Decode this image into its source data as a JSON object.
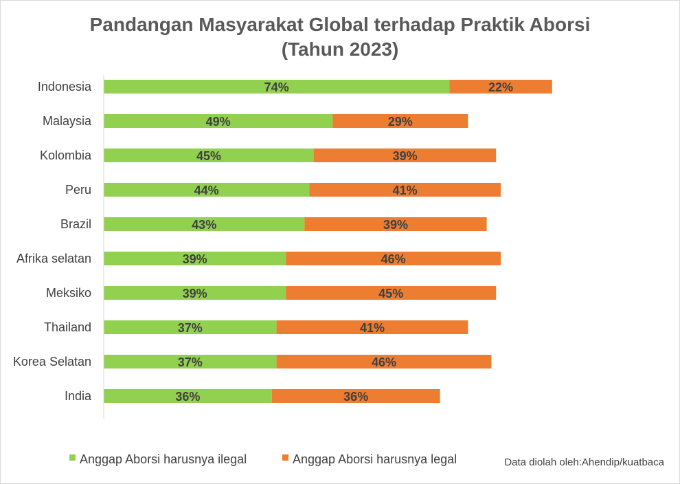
{
  "chart_data": {
    "type": "bar",
    "orientation": "horizontal",
    "stacked": true,
    "title": "Pandangan Masyarakat Global terhadap Praktik Aborsi",
    "subtitle": "(Tahun 2023)",
    "categories": [
      "Indonesia",
      "Malaysia",
      "Kolombia",
      "Peru",
      "Brazil",
      "Afrika selatan",
      "Meksiko",
      "Thailand",
      "Korea Selatan",
      "India"
    ],
    "series": [
      {
        "name": "Anggap Aborsi harusnya ilegal",
        "color": "#92d050",
        "values": [
          74,
          49,
          45,
          44,
          43,
          39,
          39,
          37,
          37,
          36
        ],
        "labels": [
          "74%",
          "49%",
          "45%",
          "44%",
          "43%",
          "39%",
          "39%",
          "37%",
          "37%",
          "36%"
        ]
      },
      {
        "name": "Anggap Aborsi harusnya legal",
        "color": "#ed7d31",
        "values": [
          22,
          29,
          39,
          41,
          39,
          46,
          45,
          41,
          46,
          36
        ],
        "labels": [
          "22%",
          "29%",
          "39%",
          "41%",
          "39%",
          "46%",
          "45%",
          "41%",
          "46%",
          "36%"
        ]
      }
    ],
    "xlim": [
      0,
      100
    ],
    "grid": false,
    "legend_position": "bottom",
    "source_note": "Data diolah oleh:Ahendip/kuatbaca"
  }
}
